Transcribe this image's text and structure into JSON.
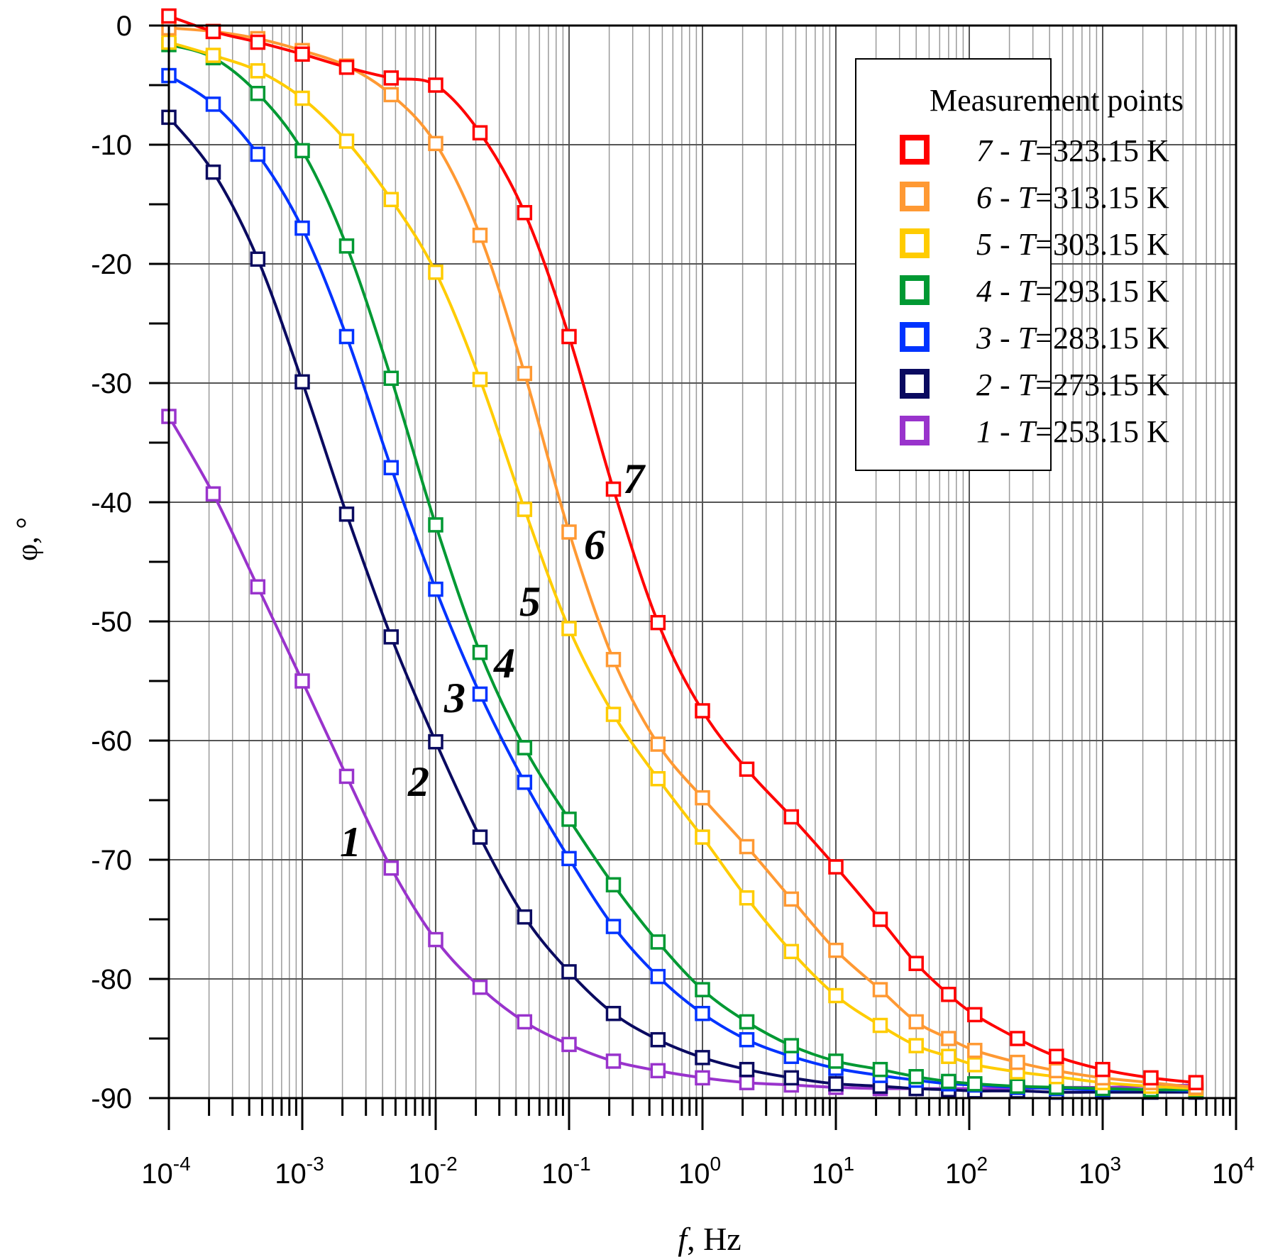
{
  "chart_data": {
    "type": "line",
    "title": "",
    "xlabel_italic": "f",
    "xlabel_rest": ", Hz",
    "ylabel": "φ, °",
    "xscale": "log",
    "xlim": [
      0.0001,
      10000
    ],
    "ylim": [
      -90,
      0
    ],
    "grid": true,
    "x_ticks": [
      {
        "base": "10",
        "exp": "-4",
        "value": 0.0001
      },
      {
        "base": "10",
        "exp": "-3",
        "value": 0.001
      },
      {
        "base": "10",
        "exp": "-2",
        "value": 0.01
      },
      {
        "base": "10",
        "exp": "-1",
        "value": 0.1
      },
      {
        "base": "10",
        "exp": "0",
        "value": 1
      },
      {
        "base": "10",
        "exp": "1",
        "value": 10
      },
      {
        "base": "10",
        "exp": "2",
        "value": 100
      },
      {
        "base": "10",
        "exp": "3",
        "value": 1000
      },
      {
        "base": "10",
        "exp": "4",
        "value": 10000
      }
    ],
    "y_ticks": [
      "0",
      "-10",
      "-20",
      "-30",
      "-40",
      "-50",
      "-60",
      "-70",
      "-80",
      "-90"
    ],
    "y_tick_values": [
      0,
      -10,
      -20,
      -30,
      -40,
      -50,
      -60,
      -70,
      -80,
      -90
    ],
    "legend": {
      "title": "Measurement points",
      "placement": "top-right"
    },
    "series": [
      {
        "id": "7",
        "num": "7",
        "label_mid": " - ",
        "label_t": "T",
        "label_rest": "=323.15 K",
        "color": "#ff0000",
        "x": [
          0.0001,
          0.000215,
          0.000464,
          0.001,
          0.00215,
          0.00464,
          0.01,
          0.0215,
          0.0464,
          0.1,
          0.215,
          0.464,
          1,
          2.15,
          4.64,
          10,
          21.5,
          40,
          70,
          110,
          230,
          450,
          1000,
          2300,
          5000
        ],
        "y": [
          0.8,
          -0.5,
          -1.4,
          -2.4,
          -3.5,
          -4.4,
          -5,
          -9,
          -15.7,
          -26.1,
          -38.9,
          -50.1,
          -57.5,
          -62.4,
          -66.4,
          -70.6,
          -75,
          -78.7,
          -81.3,
          -83,
          -85,
          -86.5,
          -87.6,
          -88.3,
          -88.7
        ],
        "curve_label": "7"
      },
      {
        "id": "6",
        "num": "6",
        "label_mid": " - ",
        "label_t": "T",
        "label_rest": "=313.15 K",
        "color": "#ff9933",
        "x": [
          0.0001,
          0.000215,
          0.000464,
          0.001,
          0.00215,
          0.00464,
          0.01,
          0.0215,
          0.0464,
          0.1,
          0.215,
          0.464,
          1,
          2.15,
          4.64,
          10,
          21.5,
          40,
          70,
          110,
          230,
          450,
          1000,
          2300,
          5000
        ],
        "y": [
          -0.2,
          -0.5,
          -1.1,
          -2.1,
          -3.4,
          -5.8,
          -9.9,
          -17.6,
          -29.2,
          -42.5,
          -53.2,
          -60.3,
          -64.8,
          -68.9,
          -73.3,
          -77.6,
          -80.9,
          -83.6,
          -85,
          -86,
          -87,
          -87.7,
          -88.3,
          -88.7,
          -89.1
        ],
        "curve_label": "6"
      },
      {
        "id": "5",
        "num": "5",
        "label_mid": " - ",
        "label_t": "T",
        "label_rest": "=303.15 K",
        "color": "#ffcc00",
        "x": [
          0.0001,
          0.000215,
          0.000464,
          0.001,
          0.00215,
          0.00464,
          0.01,
          0.0215,
          0.0464,
          0.1,
          0.215,
          0.464,
          1,
          2.15,
          4.64,
          10,
          21.5,
          40,
          70,
          110,
          230,
          450,
          1000,
          2300,
          5000
        ],
        "y": [
          -1.4,
          -2.5,
          -3.8,
          -6.1,
          -9.7,
          -14.6,
          -20.7,
          -29.7,
          -40.6,
          -50.6,
          -57.8,
          -63.2,
          -68.1,
          -73.2,
          -77.7,
          -81.4,
          -83.9,
          -85.6,
          -86.5,
          -87.2,
          -87.8,
          -88.2,
          -88.7,
          -89,
          -89.2
        ],
        "curve_label": "5"
      },
      {
        "id": "4",
        "num": "4",
        "label_mid": " - ",
        "label_t": "T",
        "label_rest": "=293.15 K",
        "color": "#009933",
        "x": [
          0.0001,
          0.000215,
          0.000464,
          0.001,
          0.00215,
          0.00464,
          0.01,
          0.0215,
          0.0464,
          0.1,
          0.215,
          0.464,
          1,
          2.15,
          4.64,
          10,
          21.5,
          40,
          70,
          110,
          230,
          450,
          1000,
          2300,
          5000
        ],
        "y": [
          -1.6,
          -2.7,
          -5.7,
          -10.5,
          -18.5,
          -29.6,
          -41.9,
          -52.6,
          -60.6,
          -66.6,
          -72.1,
          -76.9,
          -80.9,
          -83.6,
          -85.6,
          -86.9,
          -87.6,
          -88.2,
          -88.6,
          -88.8,
          -89,
          -89.1,
          -89.2,
          -89.3,
          -89.3
        ],
        "curve_label": "4"
      },
      {
        "id": "3",
        "num": "3",
        "label_mid": " - ",
        "label_t": "T",
        "label_rest": "=283.15 K",
        "color": "#0033ff",
        "x": [
          0.0001,
          0.000215,
          0.000464,
          0.001,
          0.00215,
          0.00464,
          0.01,
          0.0215,
          0.0464,
          0.1,
          0.215,
          0.464,
          1,
          2.15,
          4.64,
          10,
          21.5,
          40,
          70,
          110,
          230,
          450,
          1000,
          2300,
          5000
        ],
        "y": [
          -4.2,
          -6.6,
          -10.8,
          -17,
          -26.1,
          -37.1,
          -47.3,
          -56.1,
          -63.5,
          -69.9,
          -75.6,
          -79.8,
          -82.9,
          -85.1,
          -86.5,
          -87.5,
          -88.1,
          -88.5,
          -88.8,
          -88.9,
          -89.1,
          -89.2,
          -89.3,
          -89.3,
          -89.4
        ],
        "curve_label": "3"
      },
      {
        "id": "2",
        "num": "2",
        "label_mid": " - ",
        "label_t": "T",
        "label_rest": "=273.15 K",
        "color": "#0a0a60",
        "x": [
          0.0001,
          0.000215,
          0.000464,
          0.001,
          0.00215,
          0.00464,
          0.01,
          0.0215,
          0.0464,
          0.1,
          0.215,
          0.464,
          1,
          2.15,
          4.64,
          10,
          21.5,
          40,
          70,
          110,
          230,
          450,
          1000,
          2300,
          5000
        ],
        "y": [
          -7.7,
          -12.3,
          -19.6,
          -29.9,
          -41,
          -51.3,
          -60.1,
          -68.1,
          -74.8,
          -79.4,
          -82.9,
          -85.1,
          -86.6,
          -87.6,
          -88.3,
          -88.8,
          -89,
          -89.2,
          -89.3,
          -89.4,
          -89.4,
          -89.5,
          -89.5,
          -89.5,
          -89.5
        ],
        "curve_label": "2"
      },
      {
        "id": "1",
        "num": "1",
        "label_mid": " - ",
        "label_t": "T",
        "label_rest": "=253.15 K",
        "color": "#9933cc",
        "x": [
          0.0001,
          0.000215,
          0.000464,
          0.001,
          0.00215,
          0.00464,
          0.01,
          0.0215,
          0.0464,
          0.1,
          0.215,
          0.464,
          1,
          2.15,
          4.64,
          10,
          21.5,
          40,
          70,
          110,
          230,
          450,
          1000,
          2300,
          5000
        ],
        "y": [
          -32.8,
          -39.3,
          -47.1,
          -55,
          -63,
          -70.7,
          -76.7,
          -80.7,
          -83.6,
          -85.5,
          -86.9,
          -87.7,
          -88.3,
          -88.7,
          -88.9,
          -89.1,
          -89.2,
          -89.2,
          -89.2,
          -89.2,
          -89.2,
          -89.1,
          -89.1,
          -89,
          -88.9
        ],
        "curve_label": "1"
      }
    ]
  }
}
